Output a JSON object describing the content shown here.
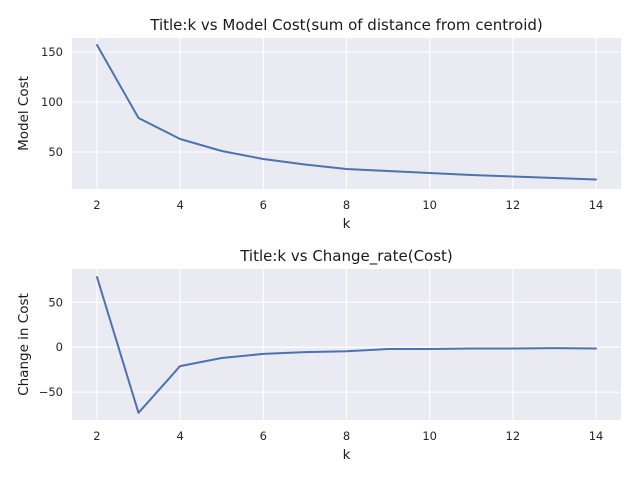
{
  "chart_data": [
    {
      "type": "line",
      "title": "Title:k vs Model Cost(sum of distance from centroid)",
      "xlabel": "k",
      "ylabel": "Model Cost",
      "x": [
        2,
        3,
        4,
        5,
        6,
        7,
        8,
        9,
        10,
        11,
        12,
        13,
        14
      ],
      "series": [
        {
          "values": [
            157,
            84,
            63,
            51,
            43,
            37.5,
            33,
            31,
            29,
            27,
            25.5,
            24,
            22.5
          ]
        }
      ],
      "xlim": [
        1.4,
        14.6
      ],
      "ylim": [
        13,
        164
      ],
      "xticks": [
        2,
        4,
        6,
        8,
        10,
        12,
        14
      ],
      "yticks": [
        50,
        100,
        150
      ],
      "grid": true,
      "color": "#4c72b0"
    },
    {
      "type": "line",
      "title": "Title:k vs Change_rate(Cost)",
      "xlabel": "k",
      "ylabel": "Change in Cost",
      "x": [
        2,
        3,
        4,
        5,
        6,
        7,
        8,
        9,
        10,
        11,
        12,
        13,
        14
      ],
      "series": [
        {
          "values": [
            78,
            -73,
            -21,
            -12,
            -7.5,
            -5.5,
            -4.5,
            -2,
            -2,
            -1.5,
            -1.5,
            -1,
            -1.5
          ]
        }
      ],
      "xlim": [
        1.4,
        14.6
      ],
      "ylim": [
        -81,
        87
      ],
      "xticks": [
        2,
        4,
        6,
        8,
        10,
        12,
        14
      ],
      "yticks": [
        -50,
        0,
        50
      ],
      "yticklabels": [
        "−50",
        "0",
        "50"
      ],
      "grid": true,
      "color": "#4c72b0"
    }
  ]
}
